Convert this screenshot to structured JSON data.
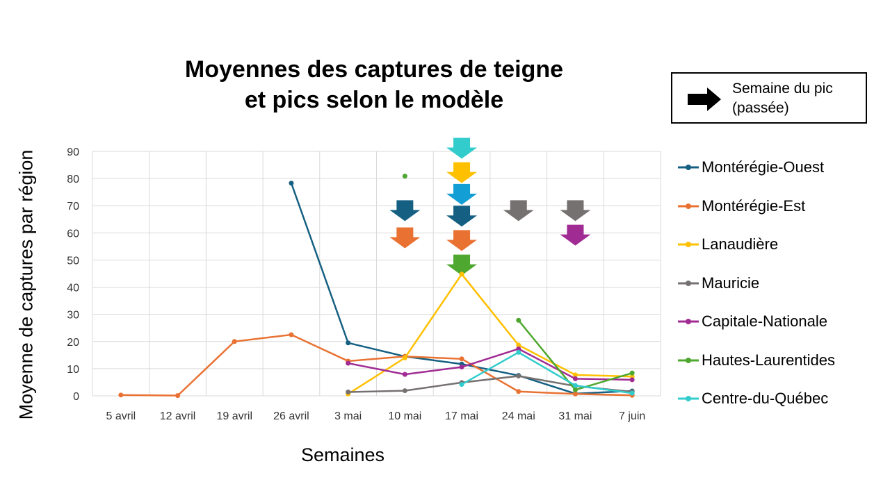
{
  "chart_data": {
    "type": "line",
    "title": "Moyennes des captures de teigne et pics selon le modèle",
    "title_lines": [
      "Moyennes des captures de teigne",
      "et pics selon le modèle"
    ],
    "xlabel": "Semaines",
    "ylabel": "Moyenne de captures par région",
    "ylim": [
      0,
      90
    ],
    "yticks": [
      0,
      10,
      20,
      30,
      40,
      50,
      60,
      70,
      80,
      90
    ],
    "grid": true,
    "legend_position": "right",
    "categories": [
      "5 avril",
      "12 avril",
      "19 avril",
      "26 avril",
      "3 mai",
      "10 mai",
      "17 mai",
      "24 mai",
      "31 mai",
      "7 juin"
    ],
    "series": [
      {
        "name": "Montérégie-Ouest",
        "color": "#156082",
        "values": [
          null,
          null,
          null,
          78.3,
          19.5,
          14.5,
          11.7,
          7.5,
          0.8,
          1.8
        ]
      },
      {
        "name": "Montérégie-Est",
        "color": "#E97132",
        "values": [
          0.3,
          0.1,
          20,
          22.5,
          12.8,
          14.5,
          13.6,
          1.6,
          0.7,
          0.2
        ]
      },
      {
        "name": "Lanaudière",
        "color": "#FFC000",
        "values": [
          null,
          null,
          null,
          null,
          0.7,
          14,
          44.8,
          18.7,
          7.7,
          7.1
        ]
      },
      {
        "name": "Mauricie",
        "color": "#767171",
        "values": [
          null,
          null,
          null,
          null,
          1.4,
          1.9,
          4.9,
          7.3,
          3.6,
          1.5
        ]
      },
      {
        "name": "Capitale-Nationale",
        "color": "#A02B93",
        "values": [
          null,
          null,
          null,
          null,
          12,
          7.9,
          10.6,
          17.3,
          6.3,
          5.9
        ]
      },
      {
        "name": "Hautes-Laurentides",
        "color": "#4EA72E",
        "values": [
          null,
          null,
          null,
          null,
          null,
          80.9,
          null,
          27.8,
          2.2,
          8.4
        ]
      },
      {
        "name": "Centre-du-Québec",
        "color": "#33CCCC",
        "values": [
          null,
          null,
          null,
          null,
          null,
          null,
          4.2,
          16,
          3.8,
          1.0
        ]
      }
    ],
    "peak_arrows": [
      {
        "week": "10 mai",
        "color": "#156082",
        "level": 72
      },
      {
        "week": "10 mai",
        "color": "#E97132",
        "level": 62
      },
      {
        "week": "17 mai",
        "color": "#33CCCC",
        "level": 95
      },
      {
        "week": "17 mai",
        "color": "#FFC000",
        "level": 86
      },
      {
        "week": "17 mai",
        "color": "#139FD6",
        "level": 78
      },
      {
        "week": "17 mai",
        "color": "#156082",
        "level": 70
      },
      {
        "week": "17 mai",
        "color": "#E97132",
        "level": 61
      },
      {
        "week": "17 mai",
        "color": "#4EA72E",
        "level": 52
      },
      {
        "week": "24 mai",
        "color": "#767171",
        "level": 72
      },
      {
        "week": "31 mai",
        "color": "#767171",
        "level": 72
      },
      {
        "week": "31 mai",
        "color": "#A02B93",
        "level": 63
      }
    ],
    "peak_legend": "Semaine du pic (passée)",
    "peak_legend_lines": [
      "Semaine du pic",
      "(passée)"
    ]
  }
}
